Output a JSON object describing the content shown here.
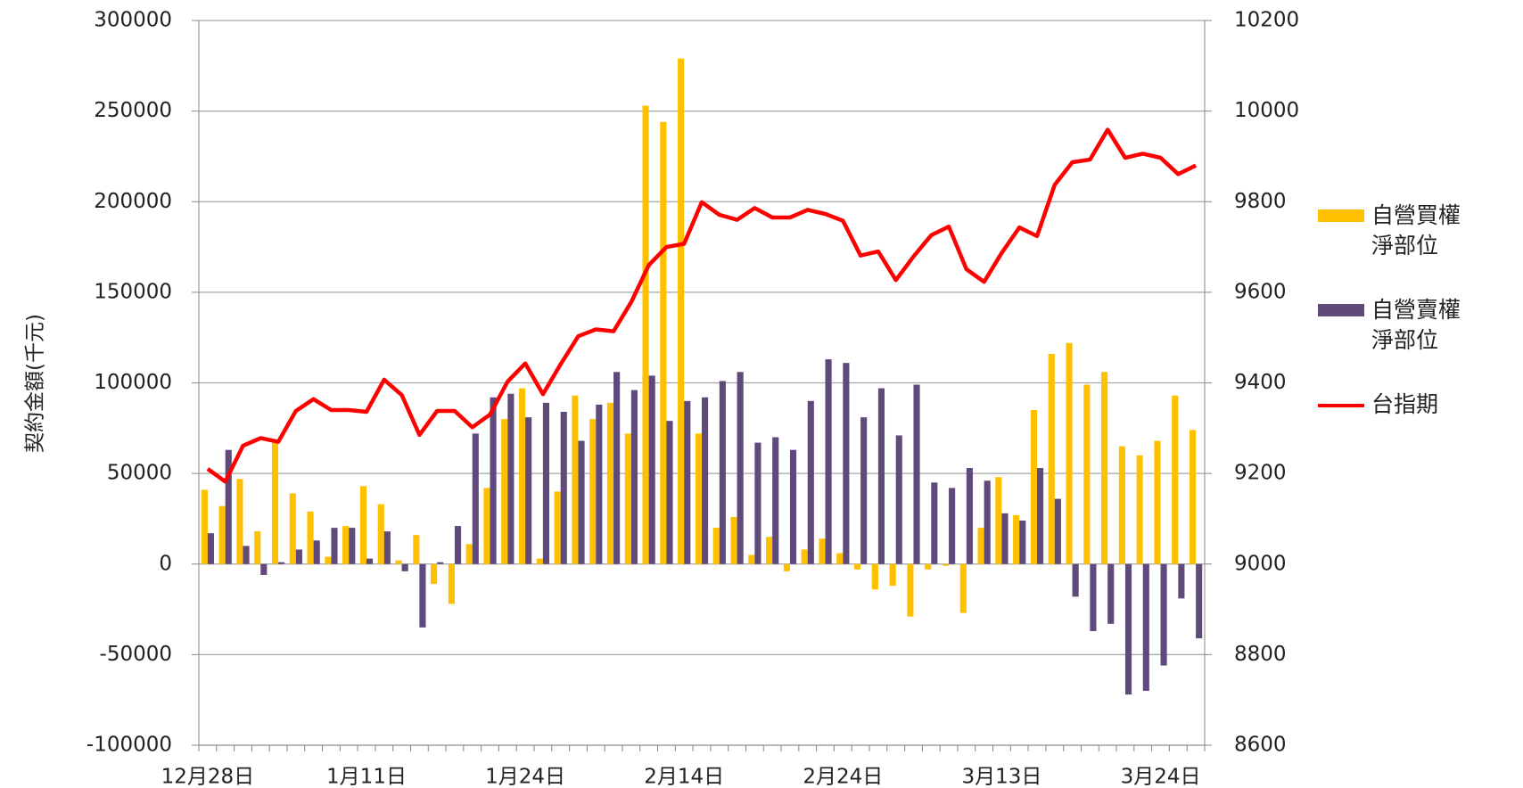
{
  "chart_data": {
    "type": "bar-line",
    "y_label": "契約金額(千元)",
    "categories": [
      "12月28日",
      null,
      null,
      null,
      null,
      null,
      null,
      null,
      null,
      "1月11日",
      null,
      null,
      null,
      null,
      null,
      null,
      null,
      null,
      "1月24日",
      null,
      null,
      null,
      null,
      null,
      null,
      null,
      null,
      "2月14日",
      null,
      null,
      null,
      null,
      null,
      null,
      null,
      null,
      "2月24日",
      null,
      null,
      null,
      null,
      null,
      null,
      null,
      null,
      "3月13日",
      null,
      null,
      null,
      null,
      null,
      null,
      null,
      null,
      "3月24日",
      null,
      null
    ],
    "series": [
      {
        "name": "自營買權淨部位",
        "color": "#ffc000",
        "kind": "bar",
        "axis": "y",
        "values": [
          41000,
          32000,
          47000,
          18000,
          67000,
          39000,
          29000,
          4000,
          21000,
          43000,
          33000,
          2000,
          16000,
          -11000,
          -22000,
          11000,
          42000,
          80000,
          97000,
          3000,
          40000,
          93000,
          80000,
          89000,
          72000,
          253000,
          244000,
          279000,
          72000,
          20000,
          26000,
          5000,
          15000,
          -4000,
          8000,
          14000,
          6000,
          -3000,
          -14000,
          -12000,
          -29000,
          -3000,
          -1000,
          -27000,
          20000,
          48000,
          27000,
          85000,
          116000,
          122000,
          99000,
          106000,
          65000,
          60000,
          68000,
          93000,
          74000
        ]
      },
      {
        "name": "自營賣權淨部位",
        "color": "#604a7b",
        "kind": "bar",
        "axis": "y",
        "values": [
          17000,
          63000,
          10000,
          -6000,
          1000,
          8000,
          13000,
          20000,
          20000,
          3000,
          18000,
          -4000,
          -35000,
          1000,
          21000,
          72000,
          92000,
          94000,
          81000,
          89000,
          84000,
          68000,
          88000,
          106000,
          96000,
          104000,
          79000,
          90000,
          92000,
          101000,
          106000,
          67000,
          70000,
          63000,
          90000,
          113000,
          111000,
          81000,
          97000,
          71000,
          99000,
          45000,
          42000,
          53000,
          46000,
          28000,
          24000,
          53000,
          36000,
          -18000,
          -37000,
          -33000,
          -72000,
          -70000,
          -56000,
          -19000,
          -41000
        ]
      },
      {
        "name": "台指期",
        "color": "#ff0000",
        "kind": "line",
        "axis": "y2",
        "values": [
          9210,
          9182,
          9261,
          9278,
          9270,
          9338,
          9364,
          9340,
          9340,
          9336,
          9407,
          9373,
          9285,
          9338,
          9338,
          9302,
          9330,
          9403,
          9443,
          9375,
          9441,
          9503,
          9518,
          9514,
          9578,
          9660,
          9700,
          9707,
          9799,
          9771,
          9760,
          9786,
          9765,
          9765,
          9782,
          9773,
          9758,
          9681,
          9690,
          9627,
          9679,
          9726,
          9745,
          9651,
          9623,
          9687,
          9743,
          9724,
          9837,
          9887,
          9893,
          9959,
          9897,
          9906,
          9897,
          9861,
          9880
        ]
      }
    ],
    "ylim": [
      -100000,
      300000
    ],
    "yticks": [
      -100000,
      -50000,
      0,
      50000,
      100000,
      150000,
      200000,
      250000,
      300000
    ],
    "y2lim": [
      8600,
      10200
    ],
    "y2ticks": [
      8600,
      8800,
      9000,
      9200,
      9400,
      9600,
      9800,
      10000,
      10200
    ],
    "grid": true,
    "legend": "right"
  }
}
